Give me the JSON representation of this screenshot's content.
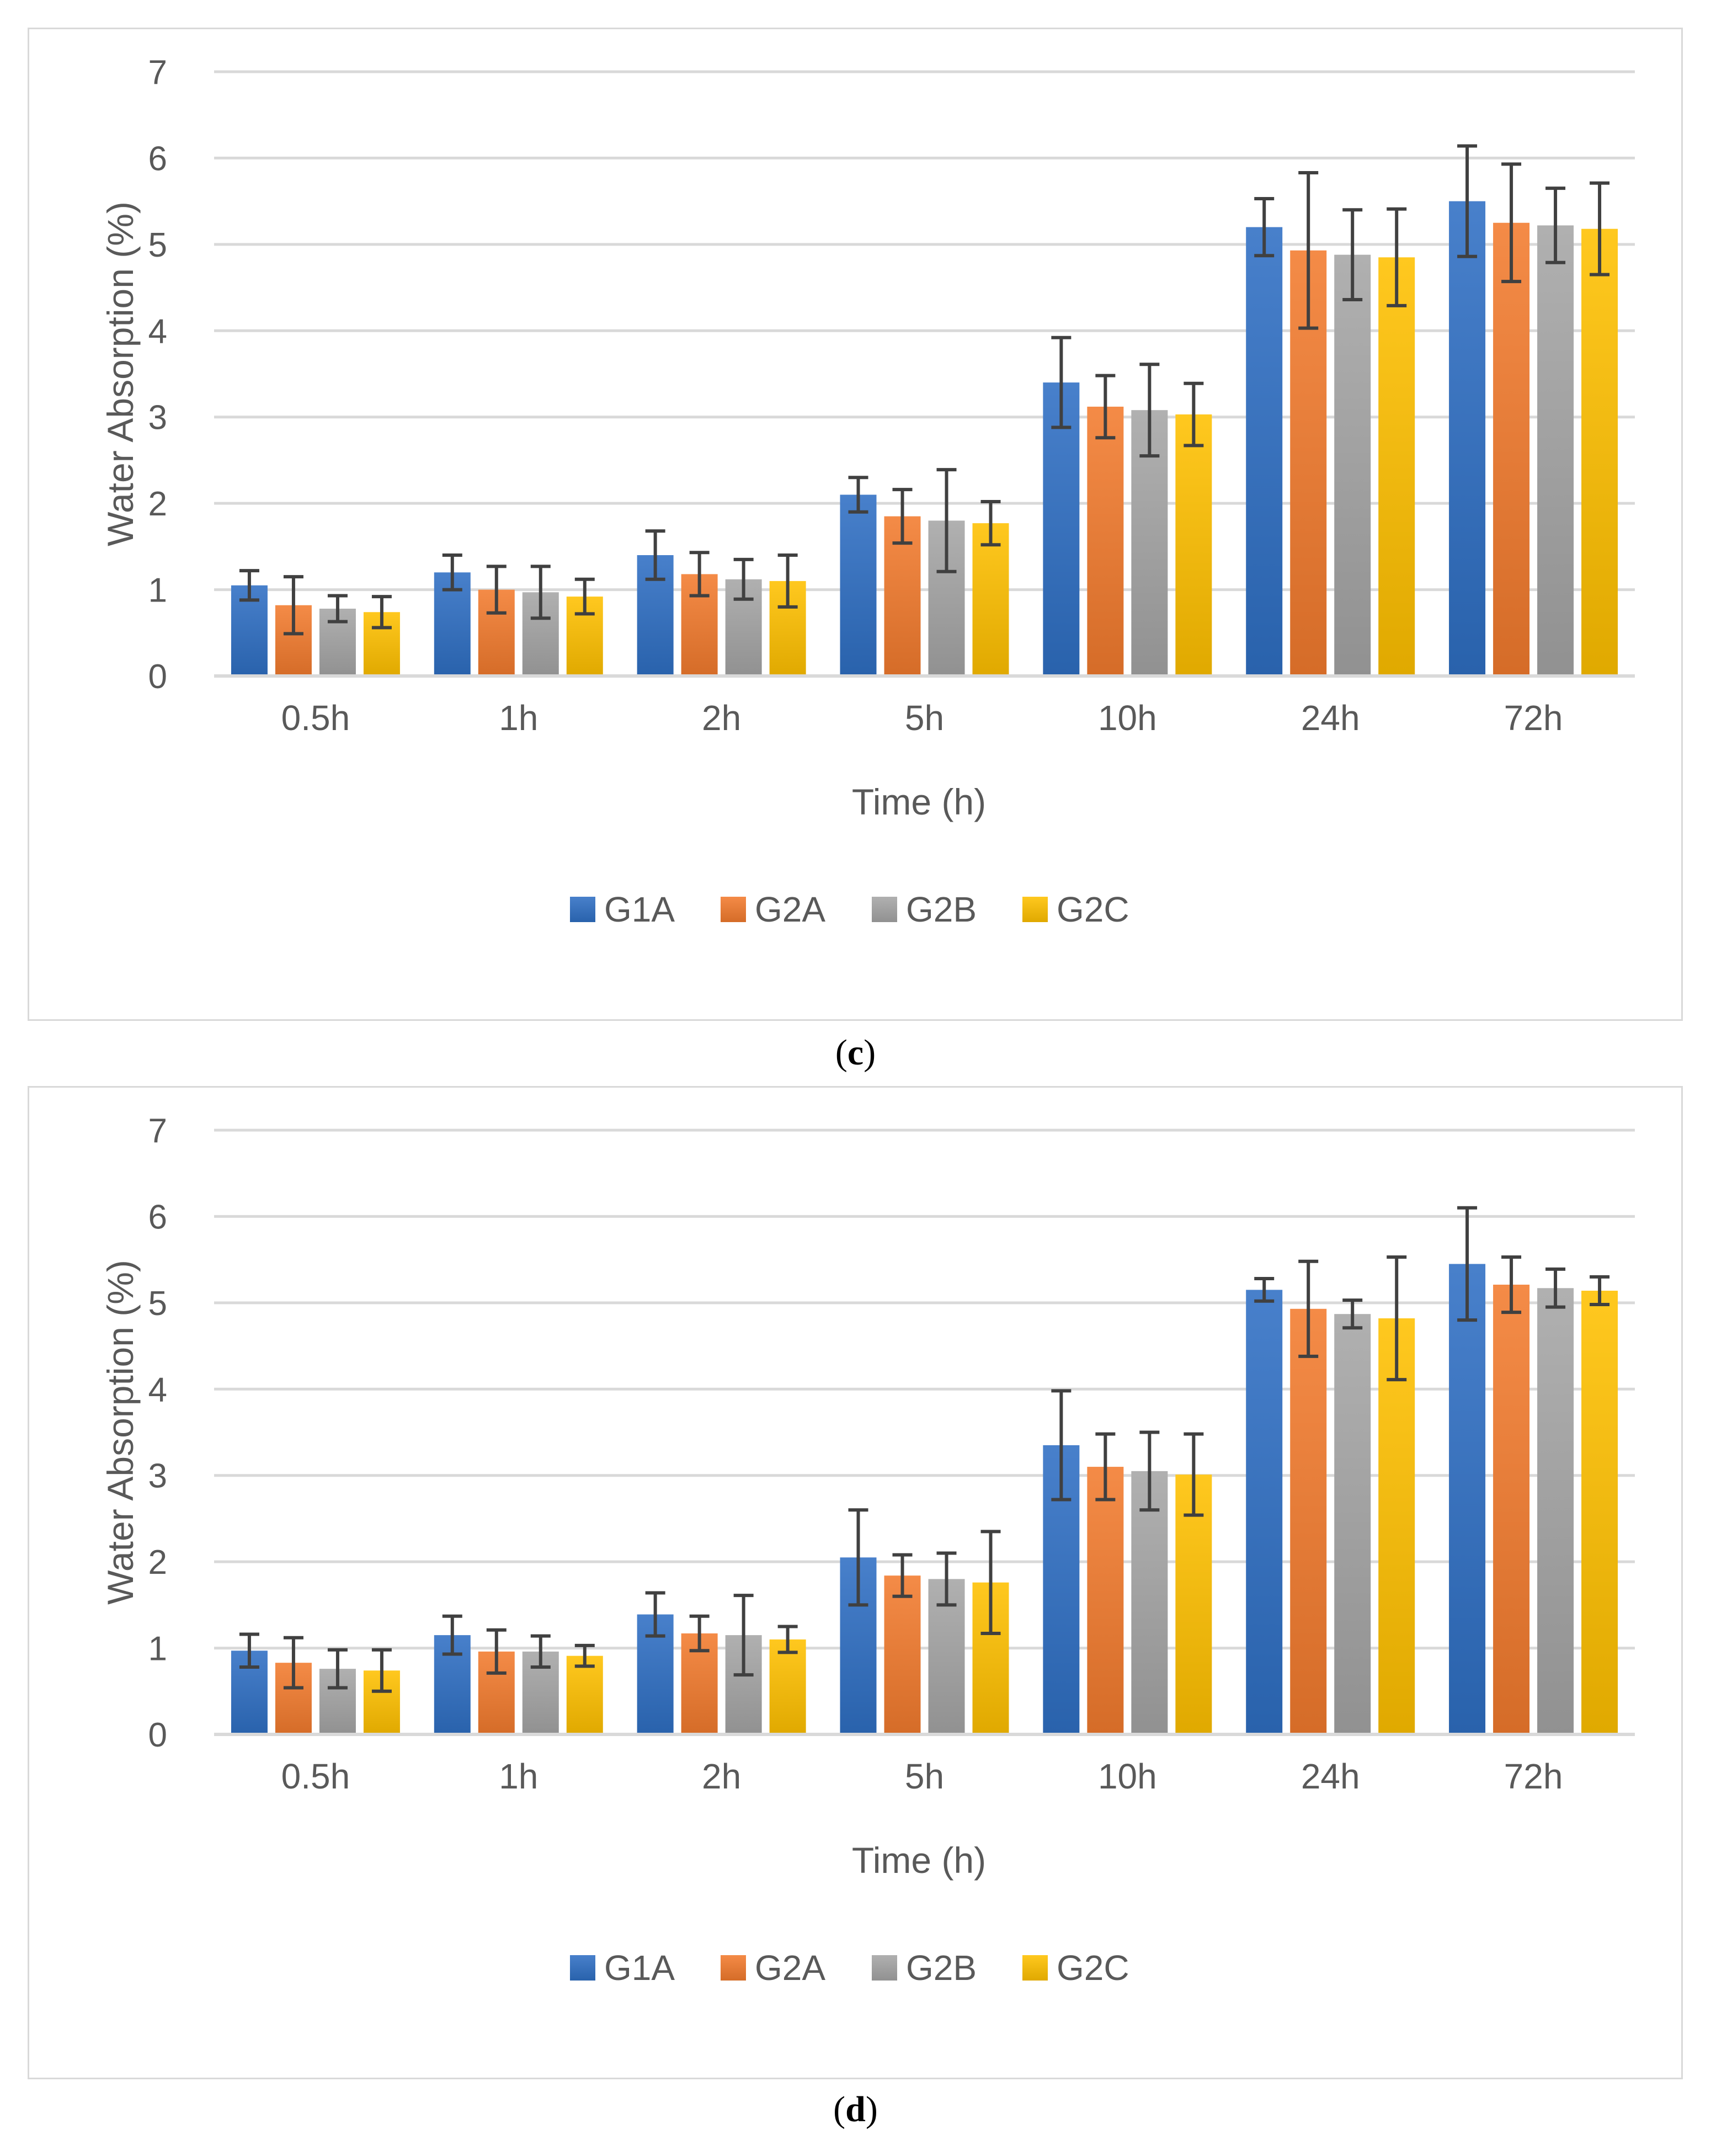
{
  "chart_data": [
    {
      "type": "bar",
      "panel_label": "c",
      "categories": [
        "0.5h",
        "1h",
        "2h",
        "5h",
        "10h",
        "24h",
        "72h"
      ],
      "xlabel": "Time (h)",
      "ylabel": "Water Absorption (%)",
      "ylim": [
        0,
        7
      ],
      "yticks": [
        "0",
        "1",
        "2",
        "3",
        "4",
        "5",
        "6",
        "7"
      ],
      "grid": true,
      "legend_position": "bottom",
      "series": [
        {
          "name": "G1A",
          "color": "#2f6fc4",
          "values": [
            1.05,
            1.2,
            1.4,
            2.1,
            3.4,
            5.2,
            5.5
          ],
          "errors": [
            0.17,
            0.2,
            0.28,
            0.2,
            0.52,
            0.33,
            0.64
          ]
        },
        {
          "name": "G2A",
          "color": "#f27b2e",
          "values": [
            0.82,
            1.0,
            1.18,
            1.85,
            3.12,
            4.93,
            5.25
          ],
          "errors": [
            0.33,
            0.27,
            0.25,
            0.31,
            0.36,
            0.9,
            0.68
          ]
        },
        {
          "name": "G2B",
          "color": "#a5a5a5",
          "values": [
            0.78,
            0.97,
            1.12,
            1.8,
            3.08,
            4.88,
            5.22
          ],
          "errors": [
            0.15,
            0.3,
            0.23,
            0.59,
            0.53,
            0.52,
            0.43
          ]
        },
        {
          "name": "G2C",
          "color": "#ffc000",
          "values": [
            0.74,
            0.92,
            1.1,
            1.77,
            3.03,
            4.85,
            5.18
          ],
          "errors": [
            0.18,
            0.2,
            0.3,
            0.25,
            0.36,
            0.56,
            0.53
          ]
        }
      ]
    },
    {
      "type": "bar",
      "panel_label": "d",
      "categories": [
        "0.5h",
        "1h",
        "2h",
        "5h",
        "10h",
        "24h",
        "72h"
      ],
      "xlabel": "Time (h)",
      "ylabel": "Water Absorption (%)",
      "ylim": [
        0,
        7
      ],
      "yticks": [
        "0",
        "1",
        "2",
        "3",
        "4",
        "5",
        "6",
        "7"
      ],
      "grid": true,
      "legend_position": "bottom",
      "series": [
        {
          "name": "G1A",
          "color": "#2f6fc4",
          "values": [
            0.97,
            1.15,
            1.39,
            2.05,
            3.35,
            5.15,
            5.45
          ],
          "errors": [
            0.19,
            0.22,
            0.25,
            0.55,
            0.63,
            0.13,
            0.65
          ]
        },
        {
          "name": "G2A",
          "color": "#f27b2e",
          "values": [
            0.83,
            0.96,
            1.17,
            1.84,
            3.1,
            4.93,
            5.21
          ],
          "errors": [
            0.29,
            0.25,
            0.2,
            0.24,
            0.38,
            0.55,
            0.32
          ]
        },
        {
          "name": "G2B",
          "color": "#a5a5a5",
          "values": [
            0.76,
            0.96,
            1.15,
            1.8,
            3.05,
            4.87,
            5.17
          ],
          "errors": [
            0.22,
            0.18,
            0.46,
            0.3,
            0.45,
            0.16,
            0.22
          ]
        },
        {
          "name": "G2C",
          "color": "#ffc000",
          "values": [
            0.74,
            0.91,
            1.1,
            1.76,
            3.01,
            4.82,
            5.14
          ],
          "errors": [
            0.24,
            0.12,
            0.15,
            0.59,
            0.47,
            0.71,
            0.16
          ]
        }
      ]
    }
  ]
}
